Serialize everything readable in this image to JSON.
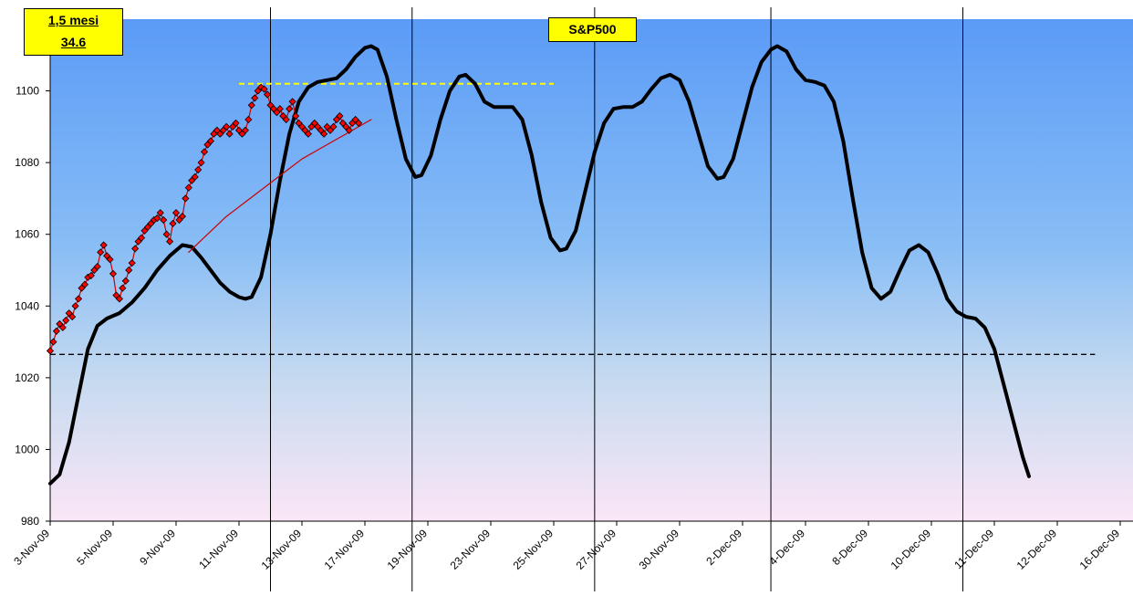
{
  "info_box": {
    "line1": "1,5 mesi",
    "line2": "34.6"
  },
  "chart_data": {
    "type": "line",
    "title": "S&P500",
    "ylim": [
      980,
      1120
    ],
    "y_ticks": [
      980,
      1000,
      1020,
      1040,
      1060,
      1080,
      1100
    ],
    "x_tick_labels": [
      "3-Nov-09",
      "5-Nov-09",
      "9-Nov-09",
      "11-Nov-09",
      "13-Nov-09",
      "17-Nov-09",
      "19-Nov-09",
      "23-Nov-09",
      "25-Nov-09",
      "27-Nov-09",
      "30-Nov-09",
      "2-Dec-09",
      "4-Dec-09",
      "8-Dec-09",
      "10-Dec-09",
      "11-Dec-09",
      "12-Dec-09",
      "16-Dec-09"
    ],
    "x_range_index": [
      0,
      17.3
    ],
    "vertical_markers_index": [
      3.5,
      5.75,
      8.65,
      11.45,
      14.5
    ],
    "horizontal_reference_lines": [
      {
        "y": 1026.5,
        "style": "dashed",
        "color": "#000000",
        "x_start_index": 0,
        "x_end_index": 16.6
      },
      {
        "y": 1102,
        "style": "dashed",
        "color": "#ffff00",
        "x_start_index": 3.0,
        "x_end_index": 8.0
      }
    ],
    "series": [
      {
        "line_color": "#000000",
        "marker": "none",
        "points": [
          [
            0,
            990.5
          ],
          [
            0.15,
            993
          ],
          [
            0.3,
            1002
          ],
          [
            0.45,
            1015
          ],
          [
            0.6,
            1028
          ],
          [
            0.75,
            1034.5
          ],
          [
            0.9,
            1036.5
          ],
          [
            1.1,
            1038
          ],
          [
            1.3,
            1041
          ],
          [
            1.5,
            1045
          ],
          [
            1.7,
            1050
          ],
          [
            1.9,
            1054
          ],
          [
            2.1,
            1057
          ],
          [
            2.25,
            1056.5
          ],
          [
            2.4,
            1053.5
          ],
          [
            2.55,
            1050
          ],
          [
            2.7,
            1046.5
          ],
          [
            2.85,
            1044
          ],
          [
            3.0,
            1042.5
          ],
          [
            3.1,
            1042
          ],
          [
            3.2,
            1042.5
          ],
          [
            3.35,
            1048
          ],
          [
            3.5,
            1060
          ],
          [
            3.65,
            1075
          ],
          [
            3.8,
            1088
          ],
          [
            3.95,
            1097
          ],
          [
            4.1,
            1101
          ],
          [
            4.25,
            1102.5
          ],
          [
            4.4,
            1103
          ],
          [
            4.55,
            1103.5
          ],
          [
            4.7,
            1106
          ],
          [
            4.85,
            1109.5
          ],
          [
            5.0,
            1112
          ],
          [
            5.1,
            1112.5
          ],
          [
            5.2,
            1111.5
          ],
          [
            5.35,
            1104
          ],
          [
            5.5,
            1092
          ],
          [
            5.65,
            1081
          ],
          [
            5.8,
            1076
          ],
          [
            5.9,
            1076.5
          ],
          [
            6.05,
            1082
          ],
          [
            6.2,
            1092
          ],
          [
            6.35,
            1100
          ],
          [
            6.5,
            1104
          ],
          [
            6.6,
            1104.5
          ],
          [
            6.75,
            1102
          ],
          [
            6.9,
            1097
          ],
          [
            7.05,
            1095.5
          ],
          [
            7.2,
            1095.5
          ],
          [
            7.35,
            1095.5
          ],
          [
            7.5,
            1092
          ],
          [
            7.65,
            1082
          ],
          [
            7.8,
            1069
          ],
          [
            7.95,
            1059
          ],
          [
            8.1,
            1055.5
          ],
          [
            8.2,
            1056
          ],
          [
            8.35,
            1061
          ],
          [
            8.5,
            1072
          ],
          [
            8.65,
            1083
          ],
          [
            8.8,
            1091
          ],
          [
            8.95,
            1095
          ],
          [
            9.1,
            1095.5
          ],
          [
            9.25,
            1095.5
          ],
          [
            9.4,
            1097
          ],
          [
            9.55,
            1100.5
          ],
          [
            9.7,
            1103.5
          ],
          [
            9.85,
            1104.5
          ],
          [
            10.0,
            1103
          ],
          [
            10.15,
            1097
          ],
          [
            10.3,
            1088
          ],
          [
            10.45,
            1079
          ],
          [
            10.6,
            1075.5
          ],
          [
            10.7,
            1076
          ],
          [
            10.85,
            1081
          ],
          [
            11.0,
            1091
          ],
          [
            11.15,
            1101
          ],
          [
            11.3,
            1108
          ],
          [
            11.45,
            1111.5
          ],
          [
            11.55,
            1112.5
          ],
          [
            11.7,
            1111
          ],
          [
            11.85,
            1106
          ],
          [
            12.0,
            1103
          ],
          [
            12.15,
            1102.5
          ],
          [
            12.3,
            1101.5
          ],
          [
            12.45,
            1097
          ],
          [
            12.6,
            1086
          ],
          [
            12.75,
            1070
          ],
          [
            12.9,
            1055
          ],
          [
            13.05,
            1045
          ],
          [
            13.2,
            1042
          ],
          [
            13.35,
            1044
          ],
          [
            13.5,
            1050
          ],
          [
            13.65,
            1055.5
          ],
          [
            13.8,
            1057
          ],
          [
            13.95,
            1055
          ],
          [
            14.1,
            1049
          ],
          [
            14.25,
            1042
          ],
          [
            14.4,
            1038.5
          ],
          [
            14.55,
            1037
          ],
          [
            14.7,
            1036.5
          ],
          [
            14.85,
            1034
          ],
          [
            15.0,
            1028
          ],
          [
            15.15,
            1018
          ],
          [
            15.3,
            1008
          ],
          [
            15.45,
            998
          ],
          [
            15.55,
            992.5
          ]
        ]
      },
      {
        "line_color": "#cc0000",
        "marker": "diamond",
        "marker_color": "#ff0000",
        "points": [
          [
            0.0,
            1027.5
          ],
          [
            0.05,
            1030
          ],
          [
            0.1,
            1033
          ],
          [
            0.15,
            1035
          ],
          [
            0.2,
            1034
          ],
          [
            0.25,
            1036
          ],
          [
            0.3,
            1038
          ],
          [
            0.35,
            1037
          ],
          [
            0.4,
            1040
          ],
          [
            0.45,
            1042
          ],
          [
            0.5,
            1045
          ],
          [
            0.55,
            1046
          ],
          [
            0.6,
            1048
          ],
          [
            0.65,
            1048.5
          ],
          [
            0.7,
            1050
          ],
          [
            0.75,
            1051
          ],
          [
            0.8,
            1055
          ],
          [
            0.85,
            1057
          ],
          [
            0.9,
            1054
          ],
          [
            0.95,
            1053
          ],
          [
            1.0,
            1049
          ],
          [
            1.05,
            1043
          ],
          [
            1.1,
            1042
          ],
          [
            1.15,
            1045
          ],
          [
            1.2,
            1047
          ],
          [
            1.25,
            1050
          ],
          [
            1.3,
            1052
          ],
          [
            1.35,
            1056
          ],
          [
            1.4,
            1058
          ],
          [
            1.45,
            1059
          ],
          [
            1.5,
            1061
          ],
          [
            1.55,
            1062
          ],
          [
            1.6,
            1063
          ],
          [
            1.65,
            1064
          ],
          [
            1.7,
            1064.5
          ],
          [
            1.75,
            1066
          ],
          [
            1.8,
            1064
          ],
          [
            1.85,
            1060
          ],
          [
            1.9,
            1058
          ],
          [
            1.95,
            1063
          ],
          [
            2.0,
            1066
          ],
          [
            2.05,
            1064
          ],
          [
            2.1,
            1065
          ],
          [
            2.15,
            1070
          ],
          [
            2.2,
            1073
          ],
          [
            2.25,
            1075
          ],
          [
            2.3,
            1076
          ],
          [
            2.35,
            1078
          ],
          [
            2.4,
            1080
          ],
          [
            2.45,
            1083
          ],
          [
            2.5,
            1085
          ],
          [
            2.55,
            1086
          ],
          [
            2.6,
            1088
          ],
          [
            2.65,
            1089
          ],
          [
            2.7,
            1088
          ],
          [
            2.75,
            1089
          ],
          [
            2.8,
            1090
          ],
          [
            2.85,
            1088
          ],
          [
            2.9,
            1090
          ],
          [
            2.95,
            1091
          ],
          [
            3.0,
            1089
          ],
          [
            3.05,
            1088
          ],
          [
            3.1,
            1089
          ],
          [
            3.15,
            1092
          ],
          [
            3.2,
            1096
          ],
          [
            3.25,
            1098
          ],
          [
            3.3,
            1100
          ],
          [
            3.35,
            1101
          ],
          [
            3.4,
            1100.5
          ],
          [
            3.45,
            1099
          ],
          [
            3.5,
            1096
          ],
          [
            3.55,
            1095
          ],
          [
            3.6,
            1094
          ],
          [
            3.65,
            1095
          ],
          [
            3.7,
            1093
          ],
          [
            3.75,
            1092
          ],
          [
            3.8,
            1095
          ],
          [
            3.85,
            1097
          ],
          [
            3.9,
            1093
          ],
          [
            3.95,
            1091
          ],
          [
            4.0,
            1090
          ],
          [
            4.05,
            1089
          ],
          [
            4.1,
            1088
          ],
          [
            4.15,
            1090
          ],
          [
            4.2,
            1091
          ],
          [
            4.25,
            1090
          ],
          [
            4.3,
            1089
          ],
          [
            4.35,
            1088
          ],
          [
            4.4,
            1090
          ],
          [
            4.45,
            1089
          ],
          [
            4.5,
            1090
          ],
          [
            4.55,
            1092
          ],
          [
            4.6,
            1093
          ],
          [
            4.65,
            1091
          ],
          [
            4.7,
            1090
          ],
          [
            4.75,
            1089
          ],
          [
            4.8,
            1091
          ],
          [
            4.85,
            1092
          ],
          [
            4.9,
            1091
          ]
        ]
      },
      {
        "line_color": "#cc0000",
        "marker": "none",
        "points": [
          [
            2.2,
            1055
          ],
          [
            2.5,
            1060
          ],
          [
            2.8,
            1065
          ],
          [
            3.1,
            1069
          ],
          [
            3.4,
            1073
          ],
          [
            3.7,
            1077
          ],
          [
            4.0,
            1081
          ],
          [
            4.3,
            1084
          ],
          [
            4.6,
            1087
          ],
          [
            4.9,
            1090
          ],
          [
            5.1,
            1092
          ]
        ]
      }
    ]
  }
}
